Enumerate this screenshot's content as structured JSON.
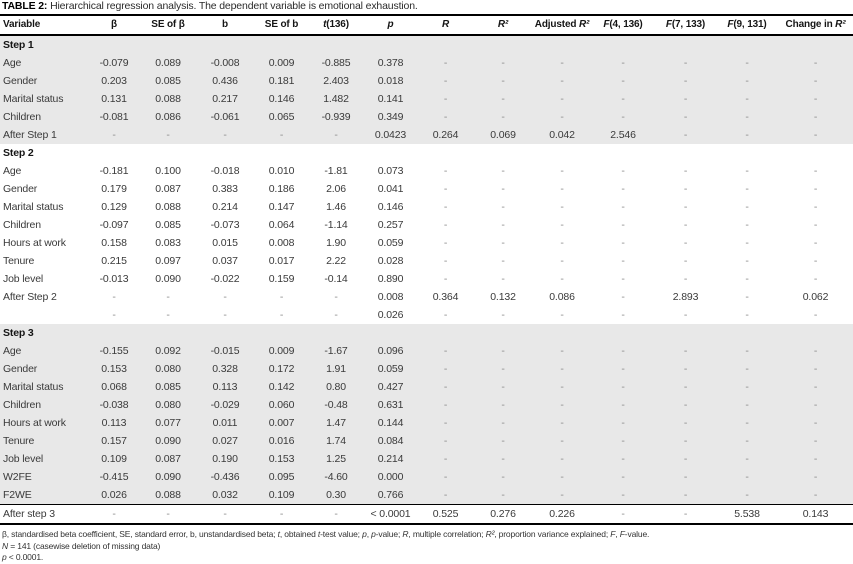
{
  "title": {
    "label": "TABLE 2:",
    "caption": "Hierarchical regression analysis. The dependent variable is emotional exhaustion."
  },
  "table": {
    "columns": [
      {
        "id": "variable",
        "pre": "Variable"
      },
      {
        "id": "beta",
        "pre": "β"
      },
      {
        "id": "se-beta",
        "pre": "SE of β"
      },
      {
        "id": "b",
        "pre": "b"
      },
      {
        "id": "se-b",
        "pre": "SE of b"
      },
      {
        "id": "t136",
        "it": "t",
        "post": "(136)"
      },
      {
        "id": "p",
        "it": "p"
      },
      {
        "id": "r",
        "it": "R"
      },
      {
        "id": "r2",
        "it": "R²"
      },
      {
        "id": "adj-r2",
        "pre": "Adjusted ",
        "it": "R²"
      },
      {
        "id": "f4-136",
        "it": "F",
        "post": "(4, 136)"
      },
      {
        "id": "f7-133",
        "it": "F",
        "post": "(7, 133)"
      },
      {
        "id": "f9-131",
        "it": "F",
        "post": "(9, 131)"
      },
      {
        "id": "change-r2",
        "pre": "Change in ",
        "it": "R²"
      }
    ],
    "sections": [
      {
        "label": "Step 1",
        "shaded": true,
        "rule_top": false,
        "rows": [
          [
            "Age",
            "-0.079",
            "0.089",
            "-0.008",
            "0.009",
            "-0.885",
            "0.378",
            "-",
            "-",
            "-",
            "-",
            "-",
            "-",
            "-"
          ],
          [
            "Gender",
            "0.203",
            "0.085",
            "0.436",
            "0.181",
            "2.403",
            "0.018",
            "-",
            "-",
            "-",
            "-",
            "-",
            "-",
            "-"
          ],
          [
            "Marital status",
            "0.131",
            "0.088",
            "0.217",
            "0.146",
            "1.482",
            "0.141",
            "-",
            "-",
            "-",
            "-",
            "-",
            "-",
            "-"
          ],
          [
            "Children",
            "-0.081",
            "0.086",
            "-0.061",
            "0.065",
            "-0.939",
            "0.349",
            "-",
            "-",
            "-",
            "-",
            "-",
            "-",
            "-"
          ],
          [
            "After Step 1",
            "-",
            "-",
            "-",
            "-",
            "-",
            "0.0423",
            "0.264",
            "0.069",
            "0.042",
            "2.546",
            "-",
            "-",
            "-"
          ]
        ]
      },
      {
        "label": "Step 2",
        "shaded": false,
        "rule_top": false,
        "rows": [
          [
            "Age",
            "-0.181",
            "0.100",
            "-0.018",
            "0.010",
            "-1.81",
            "0.073",
            "-",
            "-",
            "-",
            "-",
            "-",
            "-",
            "-"
          ],
          [
            "Gender",
            "0.179",
            "0.087",
            "0.383",
            "0.186",
            "2.06",
            "0.041",
            "-",
            "-",
            "-",
            "-",
            "-",
            "-",
            "-"
          ],
          [
            "Marital status",
            "0.129",
            "0.088",
            "0.214",
            "0.147",
            "1.46",
            "0.146",
            "-",
            "-",
            "-",
            "-",
            "-",
            "-",
            "-"
          ],
          [
            "Children",
            "-0.097",
            "0.085",
            "-0.073",
            "0.064",
            "-1.14",
            "0.257",
            "-",
            "-",
            "-",
            "-",
            "-",
            "-",
            "-"
          ],
          [
            "Hours at work",
            "0.158",
            "0.083",
            "0.015",
            "0.008",
            "1.90",
            "0.059",
            "-",
            "-",
            "-",
            "-",
            "-",
            "-",
            "-"
          ],
          [
            "Tenure",
            "0.215",
            "0.097",
            "0.037",
            "0.017",
            "2.22",
            "0.028",
            "-",
            "-",
            "-",
            "-",
            "-",
            "-",
            "-"
          ],
          [
            "Job level",
            "-0.013",
            "0.090",
            "-0.022",
            "0.159",
            "-0.14",
            "0.890",
            "-",
            "-",
            "-",
            "-",
            "-",
            "-",
            "-"
          ],
          [
            "After Step 2",
            "-",
            "-",
            "-",
            "-",
            "-",
            "0.008",
            "0.364",
            "0.132",
            "0.086",
            "-",
            "2.893",
            "-",
            "0.062"
          ],
          [
            "",
            "-",
            "-",
            "-",
            "-",
            "-",
            "0.026",
            "-",
            "-",
            "-",
            "-",
            "-",
            "-",
            "-"
          ]
        ]
      },
      {
        "label": "Step 3",
        "shaded": true,
        "rule_top": false,
        "rows": [
          [
            "Age",
            "-0.155",
            "0.092",
            "-0.015",
            "0.009",
            "-1.67",
            "0.096",
            "-",
            "-",
            "-",
            "-",
            "-",
            "-",
            "-"
          ],
          [
            "Gender",
            "0.153",
            "0.080",
            "0.328",
            "0.172",
            "1.91",
            "0.059",
            "-",
            "-",
            "-",
            "-",
            "-",
            "-",
            "-"
          ],
          [
            "Marital status",
            "0.068",
            "0.085",
            "0.113",
            "0.142",
            "0.80",
            "0.427",
            "-",
            "-",
            "-",
            "-",
            "-",
            "-",
            "-"
          ],
          [
            "Children",
            "-0.038",
            "0.080",
            "-0.029",
            "0.060",
            "-0.48",
            "0.631",
            "-",
            "-",
            "-",
            "-",
            "-",
            "-",
            "-"
          ],
          [
            "Hours at work",
            "0.113",
            "0.077",
            "0.011",
            "0.007",
            "1.47",
            "0.144",
            "-",
            "-",
            "-",
            "-",
            "-",
            "-",
            "-"
          ],
          [
            "Tenure",
            "0.157",
            "0.090",
            "0.027",
            "0.016",
            "1.74",
            "0.084",
            "-",
            "-",
            "-",
            "-",
            "-",
            "-",
            "-"
          ],
          [
            "Job level",
            "0.109",
            "0.087",
            "0.190",
            "0.153",
            "1.25",
            "0.214",
            "-",
            "-",
            "-",
            "-",
            "-",
            "-",
            "-"
          ],
          [
            "W2FE",
            "-0.415",
            "0.090",
            "-0.436",
            "0.095",
            "-4.60",
            "0.000",
            "-",
            "-",
            "-",
            "-",
            "-",
            "-",
            "-"
          ],
          [
            "F2WE",
            "0.026",
            "0.088",
            "0.032",
            "0.109",
            "0.30",
            "0.766",
            "-",
            "-",
            "-",
            "-",
            "-",
            "-",
            "-"
          ]
        ]
      },
      {
        "label": "",
        "shaded": false,
        "rule_top": true,
        "rows": [
          [
            "After step 3",
            "-",
            "-",
            "-",
            "-",
            "-",
            "< 0.0001",
            "0.525",
            "0.276",
            "0.226",
            "-",
            "-",
            "5.538",
            "0.143"
          ]
        ]
      }
    ]
  },
  "footnotes": [
    [
      {
        "t": "β, standardised beta coefficient, SE, standard error, b, unstandardised beta; "
      },
      {
        "t": "t",
        "i": true
      },
      {
        "t": ", obtained "
      },
      {
        "t": "t",
        "i": true
      },
      {
        "t": "-test value; "
      },
      {
        "t": "p",
        "i": true
      },
      {
        "t": ", "
      },
      {
        "t": "p",
        "i": true
      },
      {
        "t": "-value; "
      },
      {
        "t": "R",
        "i": true
      },
      {
        "t": ", multiple correlation; "
      },
      {
        "t": "R²",
        "i": true
      },
      {
        "t": ", proportion variance explained; "
      },
      {
        "t": "F",
        "i": true
      },
      {
        "t": ", "
      },
      {
        "t": "F",
        "i": true
      },
      {
        "t": "-value."
      }
    ],
    [
      {
        "t": "N",
        "i": true
      },
      {
        "t": " = 141 (casewise deletion of missing data)"
      }
    ],
    [
      {
        "t": "p",
        "i": true
      },
      {
        "t": " < 0.0001."
      }
    ]
  ]
}
